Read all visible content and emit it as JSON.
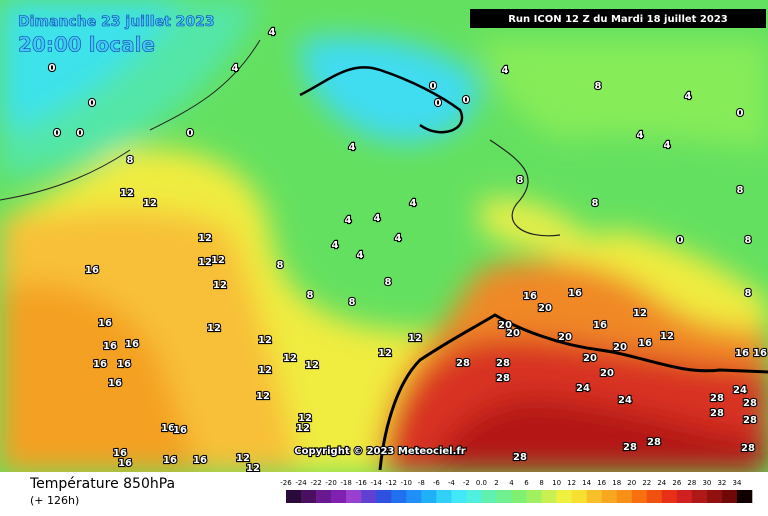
{
  "header": {
    "date": "Dimanche 23 juillet 2023",
    "local_time": "20:00 locale",
    "run": "Run ICON 12 Z du Mardi 18 juillet 2023"
  },
  "copyright": "Copyright © 2023 Meteociel.fr",
  "footer": {
    "parameter": "Température 850hPa",
    "lead_time": "(+ 126h)"
  },
  "scale": {
    "labels": [
      "-26",
      "-24",
      "-22",
      "-20",
      "-18",
      "-16",
      "-14",
      "-12",
      "-10",
      "-8",
      "-6",
      "-4",
      "-2",
      "0.0",
      "2",
      "4",
      "6",
      "8",
      "10",
      "12",
      "14",
      "16",
      "18",
      "20",
      "22",
      "24",
      "26",
      "28",
      "30",
      "32",
      "34"
    ],
    "colors": [
      "#2a0a3a",
      "#4a0f60",
      "#6a1890",
      "#8020b0",
      "#9a40d0",
      "#6040d0",
      "#3050e0",
      "#2070f0",
      "#2090f8",
      "#20b0f8",
      "#30d0f8",
      "#40e8f8",
      "#50f0e0",
      "#60f0b0",
      "#70f090",
      "#80f070",
      "#a0f060",
      "#c8f050",
      "#f0f040",
      "#f8e030",
      "#f8c028",
      "#f8a820",
      "#f89018",
      "#f87010",
      "#f05010",
      "#e83018",
      "#d02020",
      "#b01818",
      "#901010",
      "#700808",
      "#100000"
    ]
  },
  "map_labels": [
    "4",
    "0",
    "0",
    "0",
    "0",
    "0",
    "4",
    "0",
    "0",
    "0",
    "4",
    "8",
    "4",
    "0",
    "4",
    "4",
    "4",
    "8",
    "12",
    "12",
    "8",
    "8",
    "8",
    "4",
    "4",
    "4",
    "4",
    "4",
    "4",
    "12",
    "12",
    "12",
    "16",
    "12",
    "8",
    "8",
    "8",
    "8",
    "16",
    "12",
    "12",
    "12",
    "12",
    "16",
    "16",
    "20",
    "20",
    "20",
    "20",
    "16",
    "16",
    "20",
    "12",
    "20",
    "20",
    "28",
    "28",
    "28",
    "24",
    "24",
    "28",
    "24",
    "28",
    "28",
    "28",
    "28",
    "28",
    "28",
    "28",
    "16",
    "16",
    "16",
    "16",
    "16",
    "12",
    "12",
    "12",
    "12",
    "12",
    "12",
    "16",
    "16",
    "16",
    "16",
    "16",
    "16",
    "12",
    "12",
    "8",
    "8",
    "16",
    "16",
    "0",
    "12"
  ]
}
